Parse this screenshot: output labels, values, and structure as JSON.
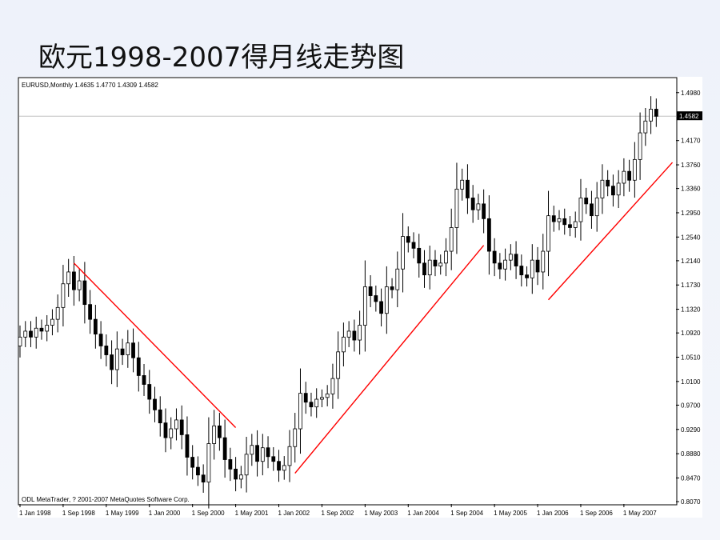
{
  "slide": {
    "title": "欧元1998-2007得月线走势图"
  },
  "colors": {
    "up_body": "#ffffff",
    "down_body": "#000000",
    "wick": "#000000",
    "trendline": "#ff0000",
    "current_price_line": "#c0c0c0",
    "frame": "#000000",
    "background": "#ffffff"
  },
  "chart_data": {
    "type": "candlestick",
    "header": "EURUSD,Monthly  1.4635 1.4770 1.4309 1.4582",
    "footer": "ODL MetaTrader, ? 2001-2007 MetaQuotes Software Corp.",
    "current_price_label": "1.4582",
    "current_price": 1.4582,
    "ylim": [
      0.803,
      1.522
    ],
    "y_ticks": [
      1.498,
      1.417,
      1.376,
      1.336,
      1.295,
      1.254,
      1.214,
      1.173,
      1.132,
      1.092,
      1.051,
      1.01,
      0.97,
      0.929,
      0.888,
      0.847,
      0.807
    ],
    "y_tick_labels": [
      "1.4980",
      "1.4170",
      "1.3760",
      "1.3360",
      "1.2950",
      "1.2540",
      "1.2140",
      "1.1730",
      "1.1320",
      "1.0920",
      "1.0510",
      "1.0100",
      "0.9700",
      "0.9290",
      "0.8880",
      "0.8470",
      "0.8070"
    ],
    "x_tick_labels": [
      "1 Jan 1998",
      "1 Sep 1998",
      "1 May 1999",
      "1 Jan 2000",
      "1 Sep 2000",
      "1 May 2001",
      "1 Jan 2002",
      "1 Sep 2002",
      "1 May 2003",
      "1 Jan 2004",
      "1 Sep 2004",
      "1 May 2005",
      "1 Jan 2006",
      "1 Sep 2006",
      "1 May 2007"
    ],
    "x_tick_month_index": [
      0,
      8,
      16,
      24,
      32,
      40,
      48,
      56,
      64,
      72,
      80,
      88,
      96,
      104,
      112
    ],
    "start_month": "Jan 1998",
    "close": [
      1.085,
      1.095,
      1.085,
      1.1,
      1.095,
      1.105,
      1.115,
      1.135,
      1.175,
      1.195,
      1.165,
      1.18,
      1.14,
      1.115,
      1.09,
      1.07,
      1.055,
      1.03,
      1.065,
      1.055,
      1.075,
      1.05,
      1.02,
      1.005,
      0.98,
      0.962,
      0.94,
      0.915,
      0.93,
      0.945,
      0.92,
      0.882,
      0.865,
      0.852,
      0.84,
      0.905,
      0.935,
      0.915,
      0.878,
      0.862,
      0.845,
      0.852,
      0.887,
      0.902,
      0.875,
      0.898,
      0.883,
      0.875,
      0.86,
      0.868,
      0.9,
      0.93,
      0.99,
      0.975,
      0.967,
      0.98,
      0.983,
      0.989,
      1.015,
      1.06,
      1.085,
      1.095,
      1.08,
      1.105,
      1.17,
      1.155,
      1.145,
      1.125,
      1.17,
      1.165,
      1.2,
      1.255,
      1.245,
      1.235,
      1.21,
      1.19,
      1.215,
      1.205,
      1.21,
      1.23,
      1.27,
      1.335,
      1.35,
      1.32,
      1.3,
      1.31,
      1.285,
      1.23,
      1.21,
      1.2,
      1.215,
      1.225,
      1.205,
      1.19,
      1.185,
      1.215,
      1.195,
      1.23,
      1.29,
      1.28,
      1.285,
      1.275,
      1.27,
      1.28,
      1.32,
      1.31,
      1.29,
      1.32,
      1.35,
      1.34,
      1.325,
      1.345,
      1.365,
      1.35,
      1.385,
      1.43,
      1.45,
      1.47,
      1.458
    ]
  }
}
